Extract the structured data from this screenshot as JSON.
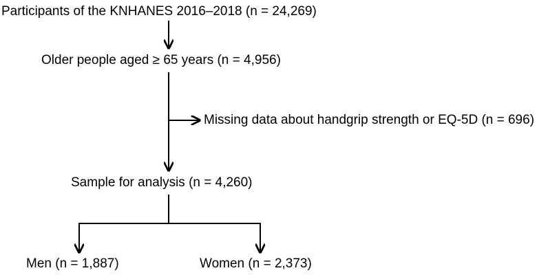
{
  "nodes": [
    {
      "label": "Participants of the KNHANES 2016–2018 (n = 24,269)"
    },
    {
      "label": "Older people aged ≥ 65 years (n = 4,956)"
    },
    {
      "label": "Missing data about handgrip strength or EQ-5D (n = 696)"
    },
    {
      "label": "Sample for analysis (n = 4,260)"
    },
    {
      "label": "Men (n = 1,887)"
    },
    {
      "label": "Women (n = 2,373)"
    }
  ]
}
